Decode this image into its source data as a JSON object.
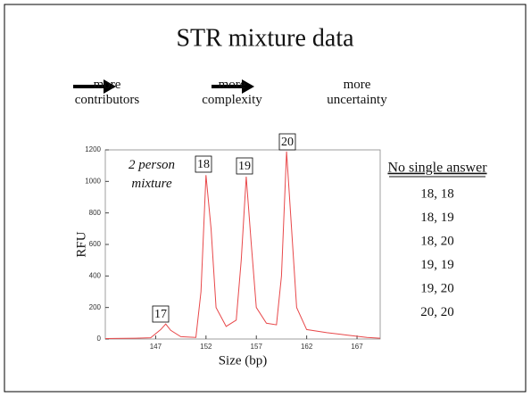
{
  "title": "STR mixture data",
  "flow": [
    "more\ncontributors",
    "more\ncomplexity",
    "more\nuncertainty"
  ],
  "answers": {
    "heading": "No single answer",
    "items": [
      "18, 18",
      "18, 19",
      "18, 20",
      "19, 19",
      "19, 20",
      "20, 20"
    ]
  },
  "chart_data": {
    "type": "line",
    "xlabel": "Size (bp)",
    "ylabel": "RFU",
    "color": "#e8484a",
    "annotations": [
      "2 person\nmixture",
      "17",
      "18",
      "19",
      "20"
    ],
    "x": [
      142,
      145,
      146.5,
      147.5,
      148,
      148.5,
      149.5,
      151,
      151.5,
      152,
      152.5,
      153,
      154,
      155,
      155.5,
      156,
      156.5,
      157,
      158,
      159,
      159.5,
      160,
      160.5,
      161,
      162,
      164,
      166,
      168,
      169.3
    ],
    "y": [
      3,
      5,
      8,
      60,
      95,
      55,
      15,
      10,
      300,
      1040,
      700,
      200,
      80,
      120,
      500,
      1030,
      600,
      200,
      100,
      90,
      400,
      1190,
      700,
      200,
      60,
      40,
      25,
      10,
      5
    ],
    "xlim": [
      142,
      169.3
    ],
    "ylim": [
      0,
      1200
    ],
    "xticks": [
      147,
      152,
      157,
      162,
      167
    ],
    "yticks": [
      0,
      200,
      400,
      600,
      800,
      1000,
      1200
    ]
  }
}
